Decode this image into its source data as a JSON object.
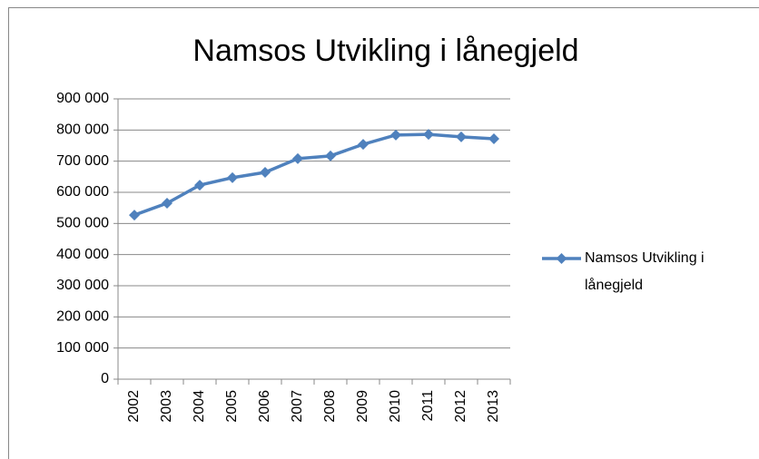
{
  "chart_data": {
    "type": "line",
    "title": "Namsos Utvikling i lånegjeld",
    "categories": [
      "2002",
      "2003",
      "2004",
      "2005",
      "2006",
      "2007",
      "2008",
      "2009",
      "2010",
      "2011",
      "2012",
      "2013"
    ],
    "series": [
      {
        "name": "Namsos Utvikling i lånegjeld",
        "color": "#4f81bd",
        "values": [
          527000,
          565000,
          623000,
          647000,
          664000,
          708000,
          717000,
          754000,
          784000,
          786000,
          778000,
          772000
        ]
      }
    ],
    "ylim": [
      0,
      900000
    ],
    "yticks": [
      0,
      {
        "value": 100000,
        "label": "100 000"
      },
      {
        "value": 200000,
        "label": "200 000"
      },
      {
        "value": 300000,
        "label": "300 000"
      },
      {
        "value": 400000,
        "label": "400 000"
      },
      {
        "value": 500000,
        "label": "500 000"
      },
      {
        "value": 600000,
        "label": "600 000"
      },
      {
        "value": 700000,
        "label": "700 000"
      },
      {
        "value": 800000,
        "label": "800 000"
      },
      {
        "value": 900000,
        "label": "900 000"
      }
    ],
    "grid": true,
    "legend": "right"
  }
}
